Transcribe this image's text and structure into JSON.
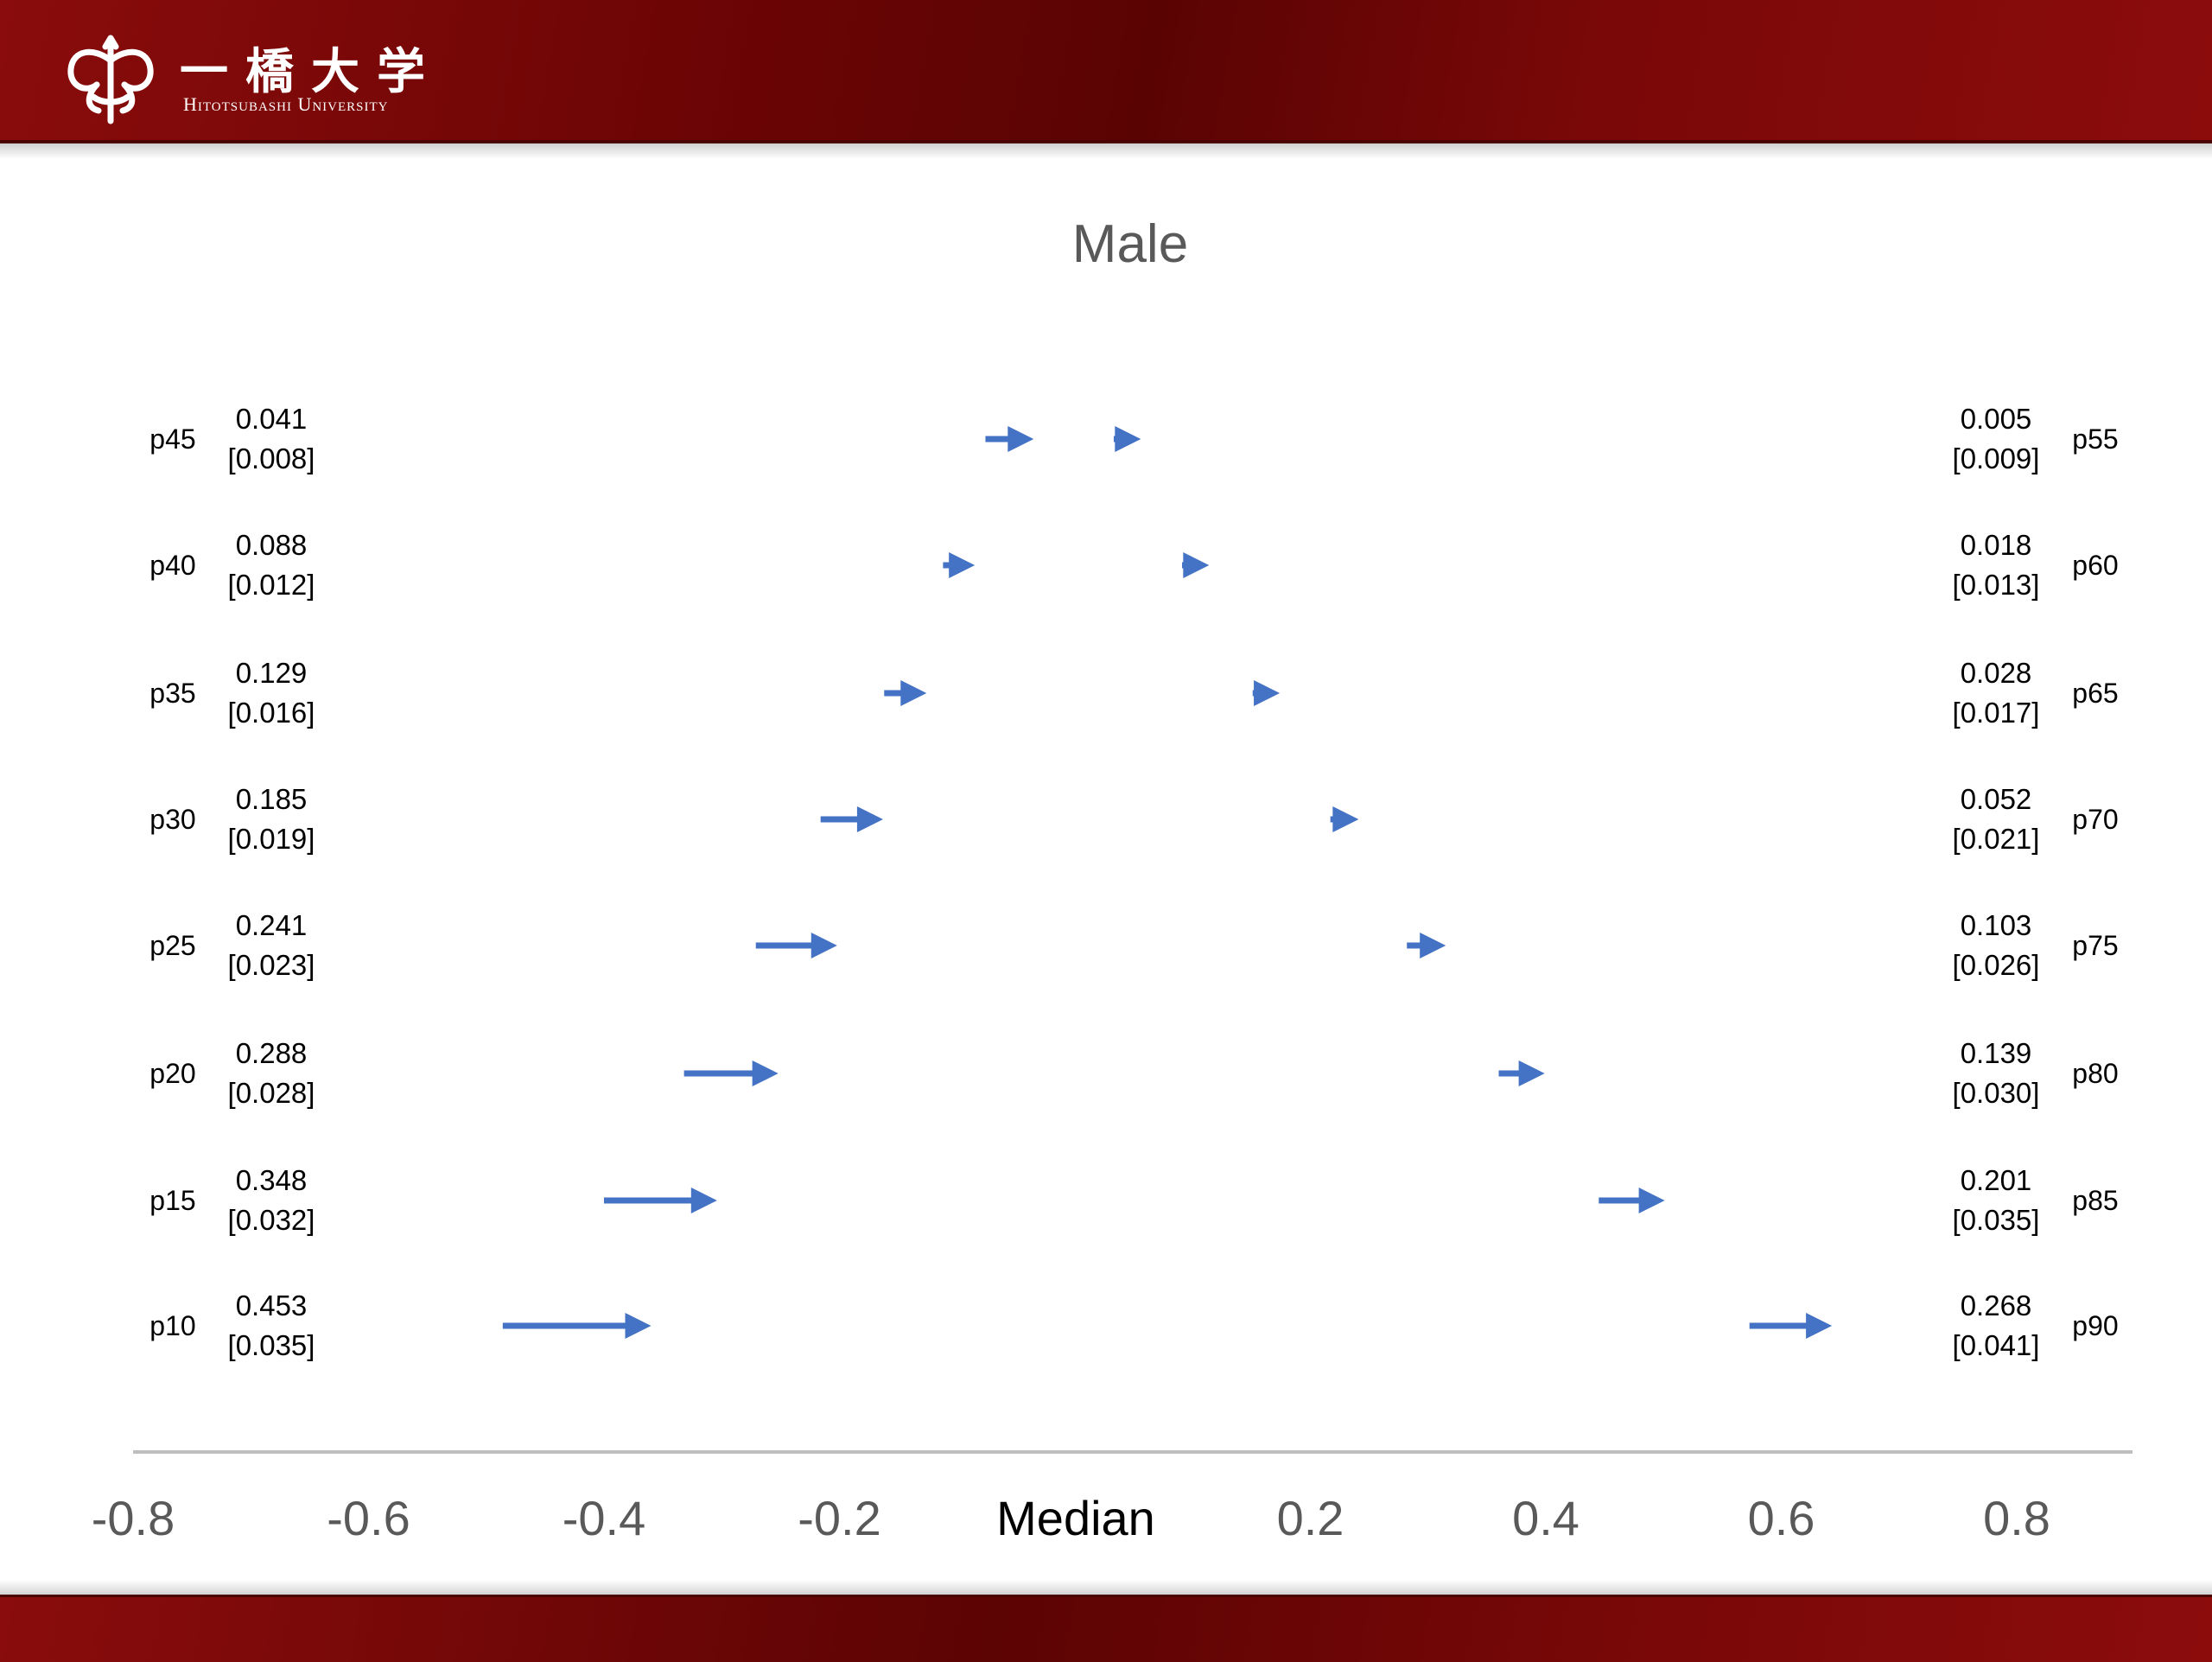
{
  "header": {
    "logo_jp": "一橋大学",
    "logo_en": "Hitotsubashi University"
  },
  "colors": {
    "banner": "#7a0808",
    "arrow": "#4472c4",
    "axis": "#bfbfbf",
    "title": "#595959"
  },
  "chart_data": {
    "type": "arrow",
    "title": "Male",
    "xlabel": "Median",
    "ylabel": "",
    "xlim": [
      -0.8,
      0.8
    ],
    "xticks": [
      "-0.8",
      "-0.6",
      "-0.4",
      "-0.2",
      "0.2",
      "0.4",
      "0.6",
      "0.8"
    ],
    "grid": false,
    "series": [
      {
        "side": "left",
        "points": [
          {
            "label": "p45",
            "start": -0.076,
            "end": -0.035,
            "value": "0.041",
            "se": "[0.008]"
          },
          {
            "label": "p40",
            "start": -0.112,
            "end": -0.085,
            "value": "0.088",
            "se": "[0.012]"
          },
          {
            "label": "p35",
            "start": -0.162,
            "end": -0.126,
            "value": "0.129",
            "se": "[0.016]"
          },
          {
            "label": "p30",
            "start": -0.216,
            "end": -0.163,
            "value": "0.185",
            "se": "[0.019]"
          },
          {
            "label": "p25",
            "start": -0.271,
            "end": -0.202,
            "value": "0.241",
            "se": "[0.023]"
          },
          {
            "label": "p20",
            "start": -0.332,
            "end": -0.252,
            "value": "0.288",
            "se": "[0.028]"
          },
          {
            "label": "p15",
            "start": -0.4,
            "end": -0.304,
            "value": "0.348",
            "se": "[0.032]"
          },
          {
            "label": "p10",
            "start": -0.486,
            "end": -0.36,
            "value": "0.453",
            "se": "[0.035]"
          }
        ]
      },
      {
        "side": "right",
        "points": [
          {
            "label": "p55",
            "start": 0.033,
            "end": 0.056,
            "value": "0.005",
            "se": "[0.009]"
          },
          {
            "label": "p60",
            "start": 0.091,
            "end": 0.114,
            "value": "0.018",
            "se": "[0.013]"
          },
          {
            "label": "p65",
            "start": 0.151,
            "end": 0.174,
            "value": "0.028",
            "se": "[0.017]"
          },
          {
            "label": "p70",
            "start": 0.217,
            "end": 0.241,
            "value": "0.052",
            "se": "[0.021]"
          },
          {
            "label": "p75",
            "start": 0.282,
            "end": 0.315,
            "value": "0.103",
            "se": "[0.026]"
          },
          {
            "label": "p80",
            "start": 0.36,
            "end": 0.399,
            "value": "0.139",
            "se": "[0.030]"
          },
          {
            "label": "p85",
            "start": 0.445,
            "end": 0.501,
            "value": "0.201",
            "se": "[0.035]"
          },
          {
            "label": "p90",
            "start": 0.573,
            "end": 0.643,
            "value": "0.268",
            "se": "[0.041]"
          }
        ]
      }
    ]
  }
}
